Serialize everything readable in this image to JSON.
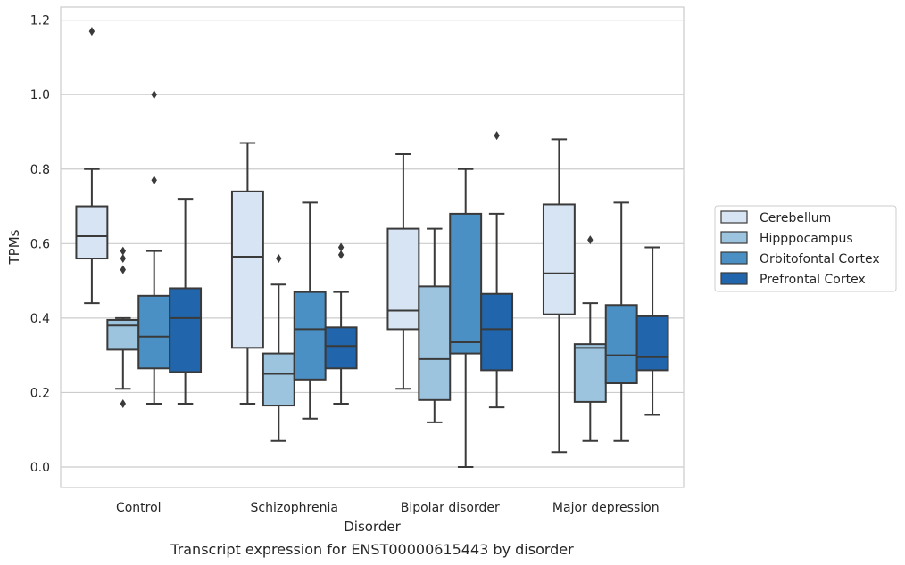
{
  "caption": "Transcript expression for ENST00000615443 by disorder",
  "chart_data": {
    "type": "box",
    "title": "",
    "xlabel": "Disorder",
    "ylabel": "TPMs",
    "ylim": [
      -0.055,
      1.235
    ],
    "yticks": [
      0.0,
      0.2,
      0.4,
      0.6,
      0.8,
      1.0,
      1.2
    ],
    "ytick_labels": [
      "0.0",
      "0.2",
      "0.4",
      "0.6",
      "0.8",
      "1.0",
      "1.2"
    ],
    "grid": "horizontal",
    "legend_position": "right",
    "categories": [
      "Control",
      "Schizophrenia",
      "Bipolar disorder",
      "Major depression"
    ],
    "series": [
      {
        "name": "Cerebellum",
        "color": "#d6e4f3",
        "boxes": [
          {
            "whisker_low": 0.44,
            "q1": 0.56,
            "median": 0.62,
            "q3": 0.7,
            "whisker_high": 0.8,
            "outliers": [
              1.17
            ]
          },
          {
            "whisker_low": 0.17,
            "q1": 0.32,
            "median": 0.565,
            "q3": 0.74,
            "whisker_high": 0.87,
            "outliers": []
          },
          {
            "whisker_low": 0.21,
            "q1": 0.37,
            "median": 0.42,
            "q3": 0.64,
            "whisker_high": 0.84,
            "outliers": []
          },
          {
            "whisker_low": 0.04,
            "q1": 0.41,
            "median": 0.52,
            "q3": 0.705,
            "whisker_high": 0.88,
            "outliers": []
          }
        ]
      },
      {
        "name": "Hipppocampus",
        "color": "#9cc4df",
        "boxes": [
          {
            "whisker_low": 0.21,
            "q1": 0.315,
            "median": 0.38,
            "q3": 0.395,
            "whisker_high": 0.4,
            "outliers": [
              0.17,
              0.53,
              0.56,
              0.58
            ]
          },
          {
            "whisker_low": 0.07,
            "q1": 0.165,
            "median": 0.25,
            "q3": 0.305,
            "whisker_high": 0.49,
            "outliers": [
              0.56
            ]
          },
          {
            "whisker_low": 0.12,
            "q1": 0.18,
            "median": 0.29,
            "q3": 0.485,
            "whisker_high": 0.64,
            "outliers": []
          },
          {
            "whisker_low": 0.07,
            "q1": 0.175,
            "median": 0.32,
            "q3": 0.33,
            "whisker_high": 0.44,
            "outliers": [
              0.61
            ]
          }
        ]
      },
      {
        "name": "Orbitofontal Cortex",
        "color": "#4b90c4",
        "boxes": [
          {
            "whisker_low": 0.17,
            "q1": 0.265,
            "median": 0.35,
            "q3": 0.46,
            "whisker_high": 0.58,
            "outliers": [
              0.77,
              1.0
            ]
          },
          {
            "whisker_low": 0.13,
            "q1": 0.235,
            "median": 0.37,
            "q3": 0.47,
            "whisker_high": 0.71,
            "outliers": []
          },
          {
            "whisker_low": 0.0,
            "q1": 0.305,
            "median": 0.335,
            "q3": 0.68,
            "whisker_high": 0.8,
            "outliers": []
          },
          {
            "whisker_low": 0.07,
            "q1": 0.225,
            "median": 0.3,
            "q3": 0.435,
            "whisker_high": 0.71,
            "outliers": []
          }
        ]
      },
      {
        "name": "Prefrontal Cortex",
        "color": "#2166ac",
        "boxes": [
          {
            "whisker_low": 0.17,
            "q1": 0.255,
            "median": 0.4,
            "q3": 0.48,
            "whisker_high": 0.72,
            "outliers": []
          },
          {
            "whisker_low": 0.17,
            "q1": 0.265,
            "median": 0.325,
            "q3": 0.375,
            "whisker_high": 0.47,
            "outliers": [
              0.57,
              0.59
            ]
          },
          {
            "whisker_low": 0.16,
            "q1": 0.26,
            "median": 0.37,
            "q3": 0.465,
            "whisker_high": 0.68,
            "outliers": [
              0.89
            ]
          },
          {
            "whisker_low": 0.14,
            "q1": 0.26,
            "median": 0.295,
            "q3": 0.405,
            "whisker_high": 0.59,
            "outliers": []
          }
        ]
      }
    ]
  }
}
